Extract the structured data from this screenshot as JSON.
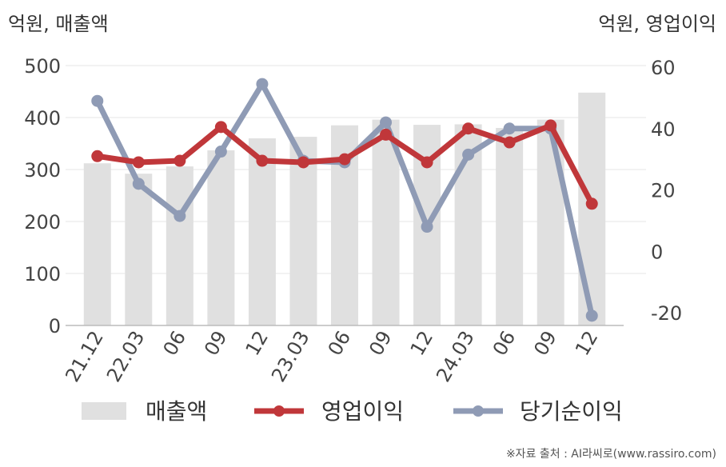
{
  "chart_data": {
    "type": "bar",
    "categories": [
      "21.12",
      "22.03",
      "06",
      "09",
      "12",
      "23.03",
      "06",
      "09",
      "12",
      "24.03",
      "06",
      "09",
      "12"
    ],
    "left_axis_label": "억원, 매출액",
    "right_axis_label": "억원, 영업이익",
    "left_ylim": [
      0,
      500
    ],
    "left_ticks": [
      0,
      100,
      200,
      300,
      400,
      500
    ],
    "right_ylim": [
      -25,
      60
    ],
    "right_ticks": [
      -20,
      0,
      20,
      40,
      60
    ],
    "grid": true,
    "legend_position": "bottom",
    "series": [
      {
        "name": "매출액",
        "type": "bar",
        "axis": "left",
        "color": "#e0e0e0",
        "values": [
          312,
          292,
          306,
          337,
          360,
          363,
          385,
          396,
          386,
          387,
          380,
          396,
          448
        ]
      },
      {
        "name": "영업이익",
        "type": "line",
        "axis": "right",
        "color": "#c0373a",
        "values": [
          31,
          29,
          29.5,
          40.5,
          29.5,
          29,
          30,
          38,
          29,
          40,
          35.5,
          41,
          15.5
        ]
      },
      {
        "name": "당기순이익",
        "type": "line",
        "axis": "right",
        "color": "#8f9bb5",
        "values": [
          49,
          22,
          11.5,
          32.5,
          54.5,
          29.5,
          29,
          42,
          8,
          31.5,
          40,
          40,
          -21
        ]
      }
    ]
  },
  "source_note": "※자료 출처 : AI라씨로(www.rassiro.com)"
}
